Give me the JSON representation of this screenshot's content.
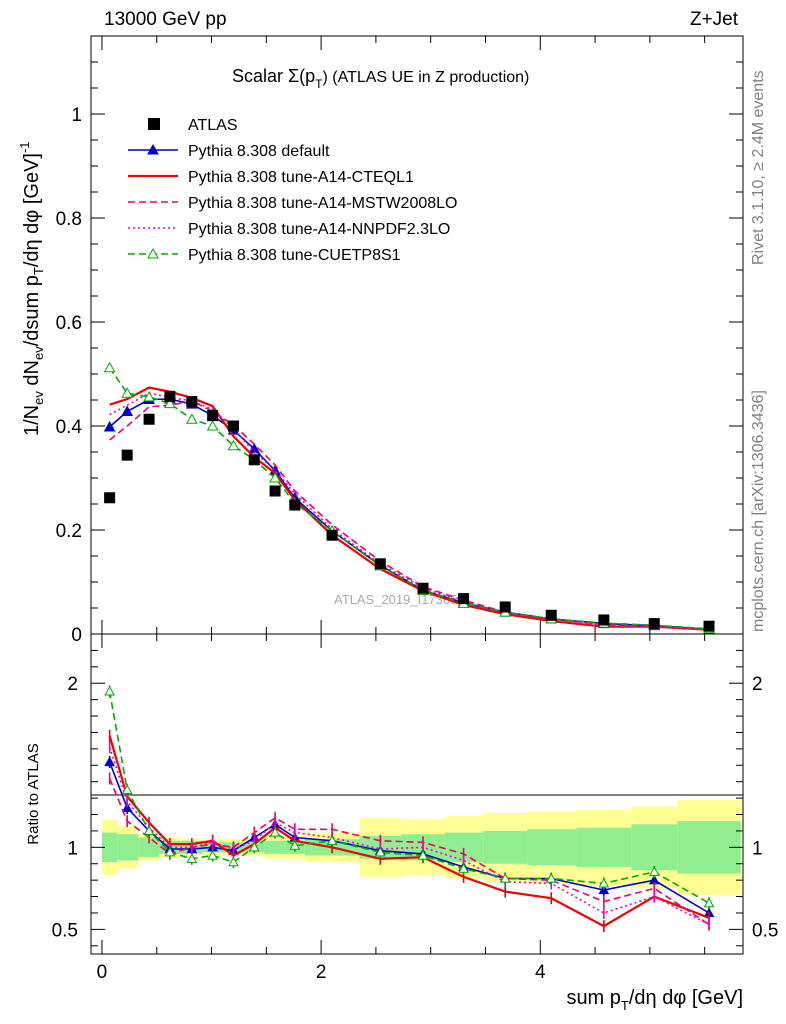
{
  "header": {
    "energy": "13000 GeV pp",
    "process": "Z+Jet"
  },
  "side_text": {
    "rivet": "Rivet 3.1.10, ≥ 2.4M events",
    "mcplots": "mcplots.cern.ch [arXiv:1306.3436]"
  },
  "watermark": "ATLAS_2019_I1736531",
  "chart_data": [
    {
      "type": "scatter",
      "panel": "main",
      "title": "Scalar Σ(p_T) (ATLAS UE in Z production)",
      "title_parts": {
        "pre": "Scalar Σ(p",
        "sub": "T",
        "post": ") (ATLAS UE in Z production)"
      },
      "ylabel": "1/N_ev dN_ev/dsum p_T/dη dφ [GeV]^-1",
      "xlabel": "sum p_T/dη dφ [GeV]",
      "xlim": [
        -0.1,
        5.85
      ],
      "ylim": [
        0,
        1.15
      ],
      "xticks": [
        0,
        2,
        4
      ],
      "yticks": [
        0,
        0.2,
        0.4,
        0.6,
        0.8,
        1
      ],
      "ytick_labels": [
        "0",
        "0.2",
        "0.4",
        "0.6",
        "0.8",
        "1"
      ],
      "x": [
        0.07,
        0.23,
        0.43,
        0.62,
        0.82,
        1.01,
        1.2,
        1.39,
        1.58,
        1.76,
        2.1,
        2.54,
        2.93,
        3.3,
        3.68,
        4.1,
        4.58,
        5.04,
        5.54
      ],
      "legend_position": "top-left",
      "series": [
        {
          "name": "ATLAS",
          "color": "#000000",
          "style": "data",
          "marker": "square",
          "values": [
            0.262,
            0.344,
            0.413,
            0.457,
            0.447,
            0.42,
            0.4,
            0.335,
            0.275,
            0.248,
            0.19,
            0.135,
            0.088,
            0.068,
            0.052,
            0.036,
            0.027,
            0.02,
            0.015
          ]
        },
        {
          "name": "Pythia 8.308 default",
          "color": "#0000cc",
          "style": "solid",
          "marker": "triangle-filled",
          "values": [
            0.398,
            0.428,
            0.451,
            0.452,
            0.442,
            0.42,
            0.392,
            0.356,
            0.314,
            0.262,
            0.198,
            0.132,
            0.084,
            0.06,
            0.042,
            0.029,
            0.02,
            0.016,
            0.009
          ]
        },
        {
          "name": "Pythia 8.308 tune-A14-CTEQL1",
          "color": "#ee0000",
          "style": "solid",
          "marker": "none",
          "values": [
            0.441,
            0.452,
            0.474,
            0.466,
            0.454,
            0.438,
            0.38,
            0.34,
            0.309,
            0.258,
            0.19,
            0.125,
            0.083,
            0.056,
            0.038,
            0.025,
            0.014,
            0.014,
            0.008
          ]
        },
        {
          "name": "Pythia 8.308 tune-A14-MSTW2008LO",
          "color": "#ee0066",
          "style": "dashed",
          "marker": "none",
          "values": [
            0.373,
            0.4,
            0.437,
            0.44,
            0.448,
            0.428,
            0.402,
            0.365,
            0.325,
            0.275,
            0.21,
            0.14,
            0.091,
            0.065,
            0.042,
            0.029,
            0.018,
            0.014,
            0.008
          ]
        },
        {
          "name": "Pythia 8.308 tune-A14-NNPDF2.3LO",
          "color": "#ee00cc",
          "style": "dotted",
          "marker": "none",
          "values": [
            0.422,
            0.44,
            0.463,
            0.455,
            0.448,
            0.432,
            0.395,
            0.35,
            0.315,
            0.27,
            0.202,
            0.135,
            0.088,
            0.062,
            0.041,
            0.028,
            0.016,
            0.014,
            0.008
          ]
        },
        {
          "name": "Pythia 8.308 tune-CUETP8S1",
          "color": "#00aa00",
          "style": "dashed",
          "marker": "triangle-open",
          "values": [
            0.512,
            0.463,
            0.456,
            0.443,
            0.413,
            0.4,
            0.362,
            0.335,
            0.3,
            0.252,
            0.198,
            0.131,
            0.084,
            0.059,
            0.042,
            0.029,
            0.021,
            0.017,
            0.01
          ]
        }
      ]
    },
    {
      "type": "line",
      "panel": "ratio",
      "ylabel": "Ratio to ATLAS",
      "xlim": [
        -0.1,
        5.85
      ],
      "ylim": [
        0.35,
        2.3
      ],
      "yticks": [
        0.5,
        1,
        2
      ],
      "ytick_labels": [
        "0.5",
        "1",
        "2"
      ],
      "x": [
        0.07,
        0.23,
        0.43,
        0.62,
        0.82,
        1.01,
        1.2,
        1.39,
        1.58,
        1.76,
        2.1,
        2.54,
        2.93,
        3.3,
        3.68,
        4.1,
        4.58,
        5.04,
        5.54
      ],
      "bin_edges": [
        0.0,
        0.14,
        0.33,
        0.52,
        0.72,
        0.92,
        1.1,
        1.3,
        1.48,
        1.67,
        1.85,
        2.35,
        2.73,
        3.13,
        3.48,
        3.88,
        4.33,
        4.83,
        5.25,
        5.83
      ],
      "band_stat_half_width": [
        0.09,
        0.08,
        0.06,
        0.04,
        0.04,
        0.03,
        0.03,
        0.03,
        0.04,
        0.04,
        0.05,
        0.07,
        0.08,
        0.09,
        0.1,
        0.11,
        0.12,
        0.14,
        0.16
      ],
      "band_total_half_width": [
        0.17,
        0.13,
        0.08,
        0.06,
        0.05,
        0.05,
        0.05,
        0.05,
        0.07,
        0.07,
        0.09,
        0.18,
        0.17,
        0.19,
        0.21,
        0.22,
        0.23,
        0.25,
        0.29
      ],
      "series": [
        {
          "name": "Pythia 8.308 default",
          "color": "#0000cc",
          "style": "solid",
          "marker": "triangle-filled",
          "values": [
            1.52,
            1.24,
            1.1,
            0.99,
            0.99,
            1.0,
            0.98,
            1.06,
            1.14,
            1.06,
            1.04,
            0.98,
            0.96,
            0.88,
            0.81,
            0.81,
            0.74,
            0.8,
            0.6
          ]
        },
        {
          "name": "Pythia 8.308 tune-A14-CTEQL1",
          "color": "#ee0000",
          "style": "solid",
          "marker": "none",
          "values": [
            1.68,
            1.31,
            1.15,
            1.02,
            1.02,
            1.04,
            0.95,
            1.02,
            1.12,
            1.04,
            1.0,
            0.93,
            0.94,
            0.82,
            0.73,
            0.69,
            0.52,
            0.7,
            0.57
          ]
        },
        {
          "name": "Pythia 8.308 tune-A14-MSTW2008LO",
          "color": "#ee0066",
          "style": "dashed",
          "marker": "none",
          "values": [
            1.42,
            1.16,
            1.06,
            0.96,
            1.0,
            1.02,
            1.0,
            1.09,
            1.18,
            1.11,
            1.11,
            1.04,
            1.03,
            0.96,
            0.81,
            0.8,
            0.67,
            0.75,
            0.53
          ]
        },
        {
          "name": "Pythia 8.308 tune-A14-NNPDF2.3LO",
          "color": "#ee00cc",
          "style": "dotted",
          "marker": "none",
          "values": [
            1.61,
            1.28,
            1.12,
            1.0,
            1.0,
            1.03,
            0.99,
            1.04,
            1.15,
            1.09,
            1.06,
            0.99,
            1.0,
            0.92,
            0.79,
            0.78,
            0.6,
            0.7,
            0.53
          ]
        },
        {
          "name": "Pythia 8.308 tune-CUETP8S1",
          "color": "#00aa00",
          "style": "dashed",
          "marker": "triangle-open",
          "values": [
            1.95,
            1.35,
            1.1,
            0.97,
            0.93,
            0.95,
            0.91,
            1.0,
            1.09,
            1.01,
            1.04,
            0.97,
            0.95,
            0.87,
            0.81,
            0.81,
            0.78,
            0.85,
            0.66
          ]
        }
      ]
    }
  ]
}
